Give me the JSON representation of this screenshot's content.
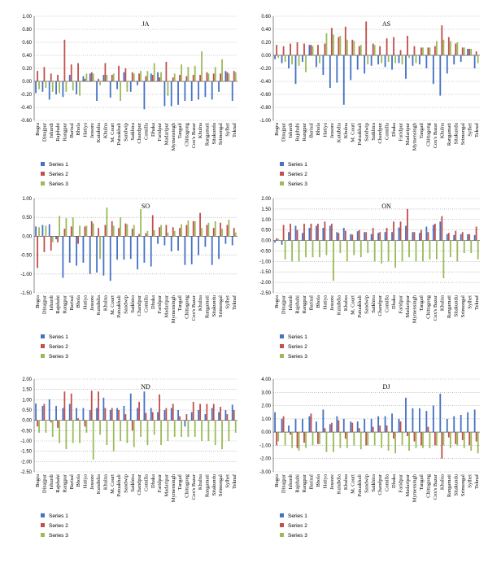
{
  "chart_data": [
    {
      "type": "bar",
      "title": "JA",
      "ylim": [
        -0.6,
        1.0
      ],
      "yticks": [
        "1.00",
        "0.80",
        "0.60",
        "0.40",
        "0.20",
        "0.00",
        "-0.20",
        "-0.40",
        "-0.60"
      ],
      "grid": "dotted-horizontal",
      "legend": "bottom-left",
      "categories": [
        "Bogra",
        "Dinajpur",
        "Ishurdi",
        "Rajshahi",
        "Rangpur",
        "Barisal",
        "Bhola",
        "Hatiya",
        "Jessore",
        "Kutubdia",
        "Khulna",
        "M. Court",
        "Patuakhali",
        "Sandwip",
        "Satkhira",
        "Chandpur",
        "Comilla",
        "Dhaka",
        "Faridpur",
        "Madaripur",
        "Mymensingh",
        "Tangail",
        "Chittagong",
        "Cox's Bazar",
        "Khulna",
        "Rangamati",
        "Sitakundu",
        "Srimongal",
        "Sylhet",
        "Teknaf"
      ],
      "series": [
        {
          "name": "Series 1",
          "color": "#4472c4",
          "values": [
            -0.18,
            -0.16,
            -0.28,
            -0.2,
            -0.24,
            0.1,
            -0.2,
            0.08,
            0.12,
            -0.3,
            0.1,
            -0.25,
            -0.12,
            0.14,
            -0.16,
            -0.06,
            -0.43,
            0.12,
            0.14,
            -0.38,
            -0.38,
            -0.36,
            -0.3,
            -0.3,
            -0.28,
            -0.24,
            -0.28,
            -0.16,
            0.16,
            -0.3
          ]
        },
        {
          "name": "Series 2",
          "color": "#c0504d",
          "values": [
            0.16,
            0.22,
            0.12,
            0.1,
            0.64,
            0.26,
            0.28,
            0.04,
            0.14,
            0.04,
            0.28,
            0.1,
            0.24,
            0.2,
            0.14,
            0.12,
            0.08,
            0.1,
            0.06,
            0.3,
            0.06,
            0.1,
            0.08,
            0.1,
            0.1,
            0.14,
            0.12,
            0.12,
            0.14,
            0.16
          ]
        },
        {
          "name": "Series 3",
          "color": "#9bbb59",
          "values": [
            -0.12,
            -0.1,
            -0.16,
            -0.18,
            -0.16,
            -0.14,
            -0.22,
            0.12,
            0.12,
            -0.06,
            0.1,
            0.12,
            -0.3,
            -0.16,
            0.12,
            0.16,
            0.16,
            0.28,
            0.14,
            -0.22,
            0.12,
            0.26,
            0.22,
            0.24,
            0.46,
            0.12,
            0.22,
            0.34,
            0.12,
            0.14
          ]
        }
      ]
    },
    {
      "type": "bar",
      "title": "AS",
      "ylim": [
        -1.0,
        0.6
      ],
      "yticks": [
        "0.60",
        "0.40",
        "0.20",
        "0.00",
        "-0.20",
        "-0.40",
        "-0.60",
        "-0.80",
        "-1.00"
      ],
      "grid": "dotted-horizontal",
      "legend": "bottom-left",
      "categories": [
        "Bogra",
        "Dinajpur",
        "Ishurdi",
        "Rajshahi",
        "Rangpur",
        "Barisal",
        "Bhola",
        "Hatiya",
        "Jessore",
        "Kutubdia",
        "Khulna",
        "M. Court",
        "Patuakhali",
        "Sandwip",
        "Satkhira",
        "Chandpur",
        "Comilla",
        "Dhaka",
        "Faridpur",
        "Madaripur",
        "Mymensingh",
        "Tangail",
        "Chittagong",
        "Cox's Bazar",
        "Khulna",
        "Rangamati",
        "Sitakundu",
        "Srimongal",
        "Sylhet",
        "Teknaf"
      ],
      "series": [
        {
          "name": "Series 1",
          "color": "#4472c4",
          "values": [
            -0.06,
            -0.12,
            -0.2,
            -0.44,
            -0.1,
            0.16,
            -0.18,
            -0.3,
            -0.5,
            -0.42,
            -0.76,
            -0.38,
            -0.22,
            -0.28,
            -0.16,
            -0.14,
            -0.18,
            -0.22,
            -0.12,
            -0.36,
            -0.16,
            -0.14,
            -0.2,
            -0.44,
            -0.62,
            -0.28,
            -0.14,
            -0.1,
            0.1,
            -0.2
          ]
        },
        {
          "name": "Series 2",
          "color": "#c0504d",
          "values": [
            0.16,
            0.14,
            0.18,
            0.2,
            0.18,
            0.16,
            0.16,
            0.18,
            0.42,
            0.28,
            0.44,
            0.24,
            0.14,
            0.52,
            0.18,
            0.14,
            0.26,
            0.28,
            0.08,
            0.3,
            0.14,
            0.12,
            0.12,
            0.14,
            0.46,
            0.28,
            0.18,
            0.12,
            0.1,
            0.06
          ]
        },
        {
          "name": "Series 3",
          "color": "#9bbb59",
          "values": [
            -0.04,
            -0.1,
            -0.14,
            -0.16,
            -0.26,
            0.14,
            -0.12,
            0.34,
            0.32,
            0.3,
            0.24,
            0.22,
            0.16,
            -0.14,
            0.16,
            -0.12,
            -0.1,
            -0.12,
            -0.14,
            -0.04,
            -0.12,
            0.12,
            0.12,
            0.22,
            0.24,
            0.22,
            0.2,
            0.12,
            0.1,
            -0.12
          ]
        }
      ]
    },
    {
      "type": "bar",
      "title": "SO",
      "ylim": [
        -1.5,
        1.0
      ],
      "yticks": [
        "1.00",
        "0.50",
        "0.00",
        "-0.50",
        "-1.00",
        "-1.50"
      ],
      "grid": "dotted-horizontal",
      "legend": "bottom-left",
      "categories": [
        "Bogra",
        "Dinajpur",
        "Ishurdi",
        "Rajshahi",
        "Rangpur",
        "Barisal",
        "Bhola",
        "Hatiya",
        "Jessore",
        "Kutubdia",
        "Khulna",
        "M. Court",
        "Patuakhali",
        "Sandwip",
        "Satkhira",
        "Chandpur",
        "Comilla",
        "Dhaka",
        "Faridpur",
        "Madaripur",
        "Mymensingh",
        "Tangail",
        "Chittagong",
        "Cox's Bazar",
        "Khulna",
        "Rangamati",
        "Sitakundu",
        "Srimongal",
        "Sylhet",
        "Teknaf"
      ],
      "series": [
        {
          "name": "Series 1",
          "color": "#4472c4",
          "values": [
            0.26,
            0.3,
            0.32,
            -0.08,
            -1.1,
            -0.7,
            -0.78,
            -0.7,
            -1.0,
            -0.96,
            -1.04,
            -1.18,
            -0.62,
            -0.62,
            -0.6,
            -0.88,
            -0.7,
            -0.8,
            -0.2,
            -0.24,
            -0.4,
            -0.38,
            -0.76,
            -0.74,
            -0.5,
            -0.28,
            -0.76,
            -0.6,
            -0.2,
            -0.24
          ]
        },
        {
          "name": "Series 2",
          "color": "#c0504d",
          "values": [
            -0.84,
            -0.42,
            -0.38,
            -0.16,
            0.2,
            0.26,
            -0.2,
            0.26,
            0.4,
            0.22,
            0.3,
            0.4,
            0.22,
            0.34,
            0.2,
            0.06,
            0.08,
            0.56,
            0.24,
            0.3,
            0.24,
            0.22,
            0.3,
            0.4,
            0.62,
            0.3,
            0.22,
            0.36,
            0.3,
            0.22
          ]
        },
        {
          "name": "Series 3",
          "color": "#9bbb59",
          "values": [
            0.24,
            0.28,
            -0.16,
            0.54,
            0.48,
            0.5,
            0.28,
            0.28,
            0.34,
            -0.6,
            0.76,
            0.28,
            0.5,
            0.32,
            0.3,
            0.72,
            0.14,
            0.16,
            0.3,
            0.1,
            0.14,
            0.32,
            0.42,
            0.4,
            0.22,
            0.36,
            0.4,
            0.2,
            0.44,
            0.1
          ]
        }
      ]
    },
    {
      "type": "bar",
      "title": "ON",
      "ylim": [
        -2.5,
        2.0
      ],
      "yticks": [
        "2.00",
        "1.50",
        "1.00",
        "0.50",
        "0.00",
        "-0.50",
        "-1.00",
        "-1.50",
        "-2.00",
        "-2.50"
      ],
      "grid": "dotted-horizontal",
      "legend": "bottom-left",
      "categories": [
        "Bogra",
        "Dinajpur",
        "Ishurdi",
        "Rajshahi",
        "Rangpur",
        "Barisal",
        "Bhola",
        "Hatiya",
        "Jessore",
        "Kutubdia",
        "Khulna",
        "M. Court",
        "Patuakhali",
        "Sandwip",
        "Satkhira",
        "Chandpur",
        "Comilla",
        "Dhaka",
        "Faridpur",
        "Madaripur",
        "Mymensingh",
        "Tangail",
        "Chittagong",
        "Cox's Bazar",
        "Khulna",
        "Rangamati",
        "Sitakundu",
        "Srimongal",
        "Sylhet",
        "Teknaf"
      ],
      "series": [
        {
          "name": "Series 1",
          "color": "#4472c4",
          "values": [
            -0.1,
            -0.2,
            0.4,
            0.7,
            0.36,
            0.6,
            0.7,
            0.6,
            0.7,
            0.4,
            0.6,
            0.3,
            0.44,
            0.4,
            0.3,
            0.36,
            0.4,
            0.4,
            0.62,
            0.7,
            0.4,
            0.36,
            0.66,
            0.74,
            0.9,
            0.3,
            0.26,
            0.3,
            0.3,
            0.26
          ]
        },
        {
          "name": "Series 2",
          "color": "#c0504d",
          "values": [
            0.1,
            0.74,
            0.8,
            0.5,
            0.8,
            0.8,
            0.8,
            0.9,
            0.8,
            0.36,
            0.46,
            0.28,
            0.5,
            0.4,
            0.6,
            0.4,
            0.6,
            0.9,
            0.9,
            1.5,
            0.4,
            0.5,
            0.4,
            0.8,
            1.16,
            0.36,
            0.46,
            0.4,
            0.3,
            0.66
          ]
        },
        {
          "name": "Series 3",
          "color": "#9bbb59",
          "values": [
            0.08,
            -0.9,
            -1.0,
            -1.0,
            -0.8,
            -0.8,
            -0.8,
            -0.7,
            -1.92,
            -0.6,
            -1.0,
            -0.7,
            -0.8,
            -0.6,
            -1.0,
            -1.1,
            -1.0,
            -1.3,
            -1.0,
            -0.8,
            -1.0,
            -1.0,
            -0.9,
            -0.9,
            -1.8,
            -0.8,
            -1.0,
            -0.6,
            -0.6,
            -0.9
          ]
        }
      ]
    },
    {
      "type": "bar",
      "title": "ND",
      "ylim": [
        -2.5,
        2.0
      ],
      "yticks": [
        "2.00",
        "1.50",
        "1.00",
        "0.50",
        "0.00",
        "-0.50",
        "-1.00",
        "-1.50",
        "-2.00",
        "-2.50"
      ],
      "grid": "dotted-horizontal",
      "legend": "bottom-left",
      "categories": [
        "Bogra",
        "Dinajpur",
        "Ishurdi",
        "Rajshahi",
        "Rangpur",
        "Barisal",
        "Bhola",
        "Hatiya",
        "Jessore",
        "Kutubdia",
        "Khulna",
        "M. Court",
        "Patuakhali",
        "Sandwip",
        "Satkhira",
        "Chandpur",
        "Comilla",
        "Dhaka",
        "Faridpur",
        "Madaripur",
        "Mymensingh",
        "Tangail",
        "Chittagong",
        "Cox's Bazar",
        "Khulna",
        "Rangamati",
        "Sitakundu",
        "Srimongal",
        "Sylhet",
        "Teknaf"
      ],
      "series": [
        {
          "name": "Series 1",
          "color": "#4472c4",
          "values": [
            0.82,
            0.7,
            1.02,
            0.7,
            0.6,
            0.8,
            0.6,
            0.6,
            0.5,
            0.6,
            1.1,
            0.5,
            0.6,
            0.7,
            1.3,
            0.6,
            1.4,
            0.6,
            0.4,
            0.5,
            0.6,
            0.5,
            -0.3,
            0.4,
            0.5,
            0.3,
            0.6,
            0.4,
            0.5,
            0.76
          ]
        },
        {
          "name": "Series 2",
          "color": "#c0504d",
          "values": [
            -0.3,
            0.8,
            -0.1,
            -0.36,
            1.4,
            1.3,
            0.1,
            -0.3,
            1.44,
            1.4,
            0.6,
            0.6,
            0.5,
            0.3,
            -0.5,
            0.9,
            0.36,
            0.4,
            1.26,
            0.6,
            0.8,
            0.2,
            0.3,
            0.9,
            0.8,
            0.8,
            0.8,
            0.66,
            0.3,
            0.5
          ]
        },
        {
          "name": "Series 3",
          "color": "#9bbb59",
          "values": [
            -0.6,
            -0.6,
            -0.8,
            -1.1,
            -1.4,
            -1.1,
            -1.1,
            -0.6,
            -1.9,
            -0.7,
            -1.2,
            -1.5,
            -1.0,
            -1.1,
            -1.3,
            -0.8,
            -1.2,
            -0.7,
            -1.2,
            -1.0,
            -0.8,
            -0.8,
            -0.8,
            -0.8,
            -1.0,
            -1.0,
            -1.2,
            -1.4,
            -1.0,
            -0.6
          ]
        }
      ]
    },
    {
      "type": "bar",
      "title": "DJ",
      "ylim": [
        -3.0,
        4.0
      ],
      "yticks": [
        "4.00",
        "3.00",
        "2.00",
        "1.00",
        "0.00",
        "-1.00",
        "-2.00",
        "-3.00"
      ],
      "grid": "dotted-horizontal",
      "legend": "bottom-left",
      "categories": [
        "Bogra",
        "Dinajpur",
        "Ishurdi",
        "Rajshahi",
        "Rangpur",
        "Barisal",
        "Bhola",
        "Hatiya",
        "Jessore",
        "Kutubdia",
        "Khulna",
        "M. Court",
        "Patuakhali",
        "Sandwip",
        "Satkhira",
        "Chandpur",
        "Comilla",
        "Dhaka",
        "Faridpur",
        "Madaripur",
        "Mymensingh",
        "Tangail",
        "Chittagong",
        "Cox's Bazar",
        "Khulna",
        "Rangamati",
        "Sitakundu",
        "Srimongal",
        "Sylhet",
        "Teknaf"
      ],
      "series": [
        {
          "name": "Series 1",
          "color": "#4472c4",
          "values": [
            1.5,
            1.0,
            0.5,
            1.0,
            1.0,
            1.2,
            0.8,
            1.7,
            0.6,
            1.2,
            1.0,
            0.8,
            0.8,
            1.0,
            1.0,
            1.2,
            1.2,
            1.4,
            1.0,
            2.6,
            1.8,
            1.8,
            1.6,
            2.0,
            2.9,
            1.0,
            1.2,
            1.3,
            1.5,
            1.7
          ]
        },
        {
          "name": "Series 2",
          "color": "#c0504d",
          "values": [
            -1.0,
            1.2,
            -0.2,
            -1.2,
            -0.8,
            1.4,
            -0.9,
            0.3,
            0.7,
            0.9,
            -0.5,
            0.7,
            0.3,
            -1.0,
            0.4,
            0.5,
            0.5,
            -0.5,
            0.8,
            -0.3,
            -0.7,
            -1.0,
            0.4,
            -1.0,
            -2.0,
            -0.4,
            -0.9,
            -0.6,
            -1.0,
            -0.7
          ]
        },
        {
          "name": "Series 3",
          "color": "#9bbb59",
          "values": [
            -0.7,
            -1.0,
            -1.2,
            -1.4,
            -1.2,
            -1.0,
            -0.9,
            -1.5,
            -1.5,
            -1.2,
            -1.2,
            -1.0,
            -1.3,
            -1.0,
            -1.0,
            -1.2,
            -1.4,
            -1.6,
            -1.0,
            -1.4,
            -1.2,
            -1.2,
            -1.2,
            -1.0,
            -1.0,
            -1.2,
            -1.0,
            -1.2,
            -1.4,
            -1.6
          ]
        }
      ]
    }
  ]
}
